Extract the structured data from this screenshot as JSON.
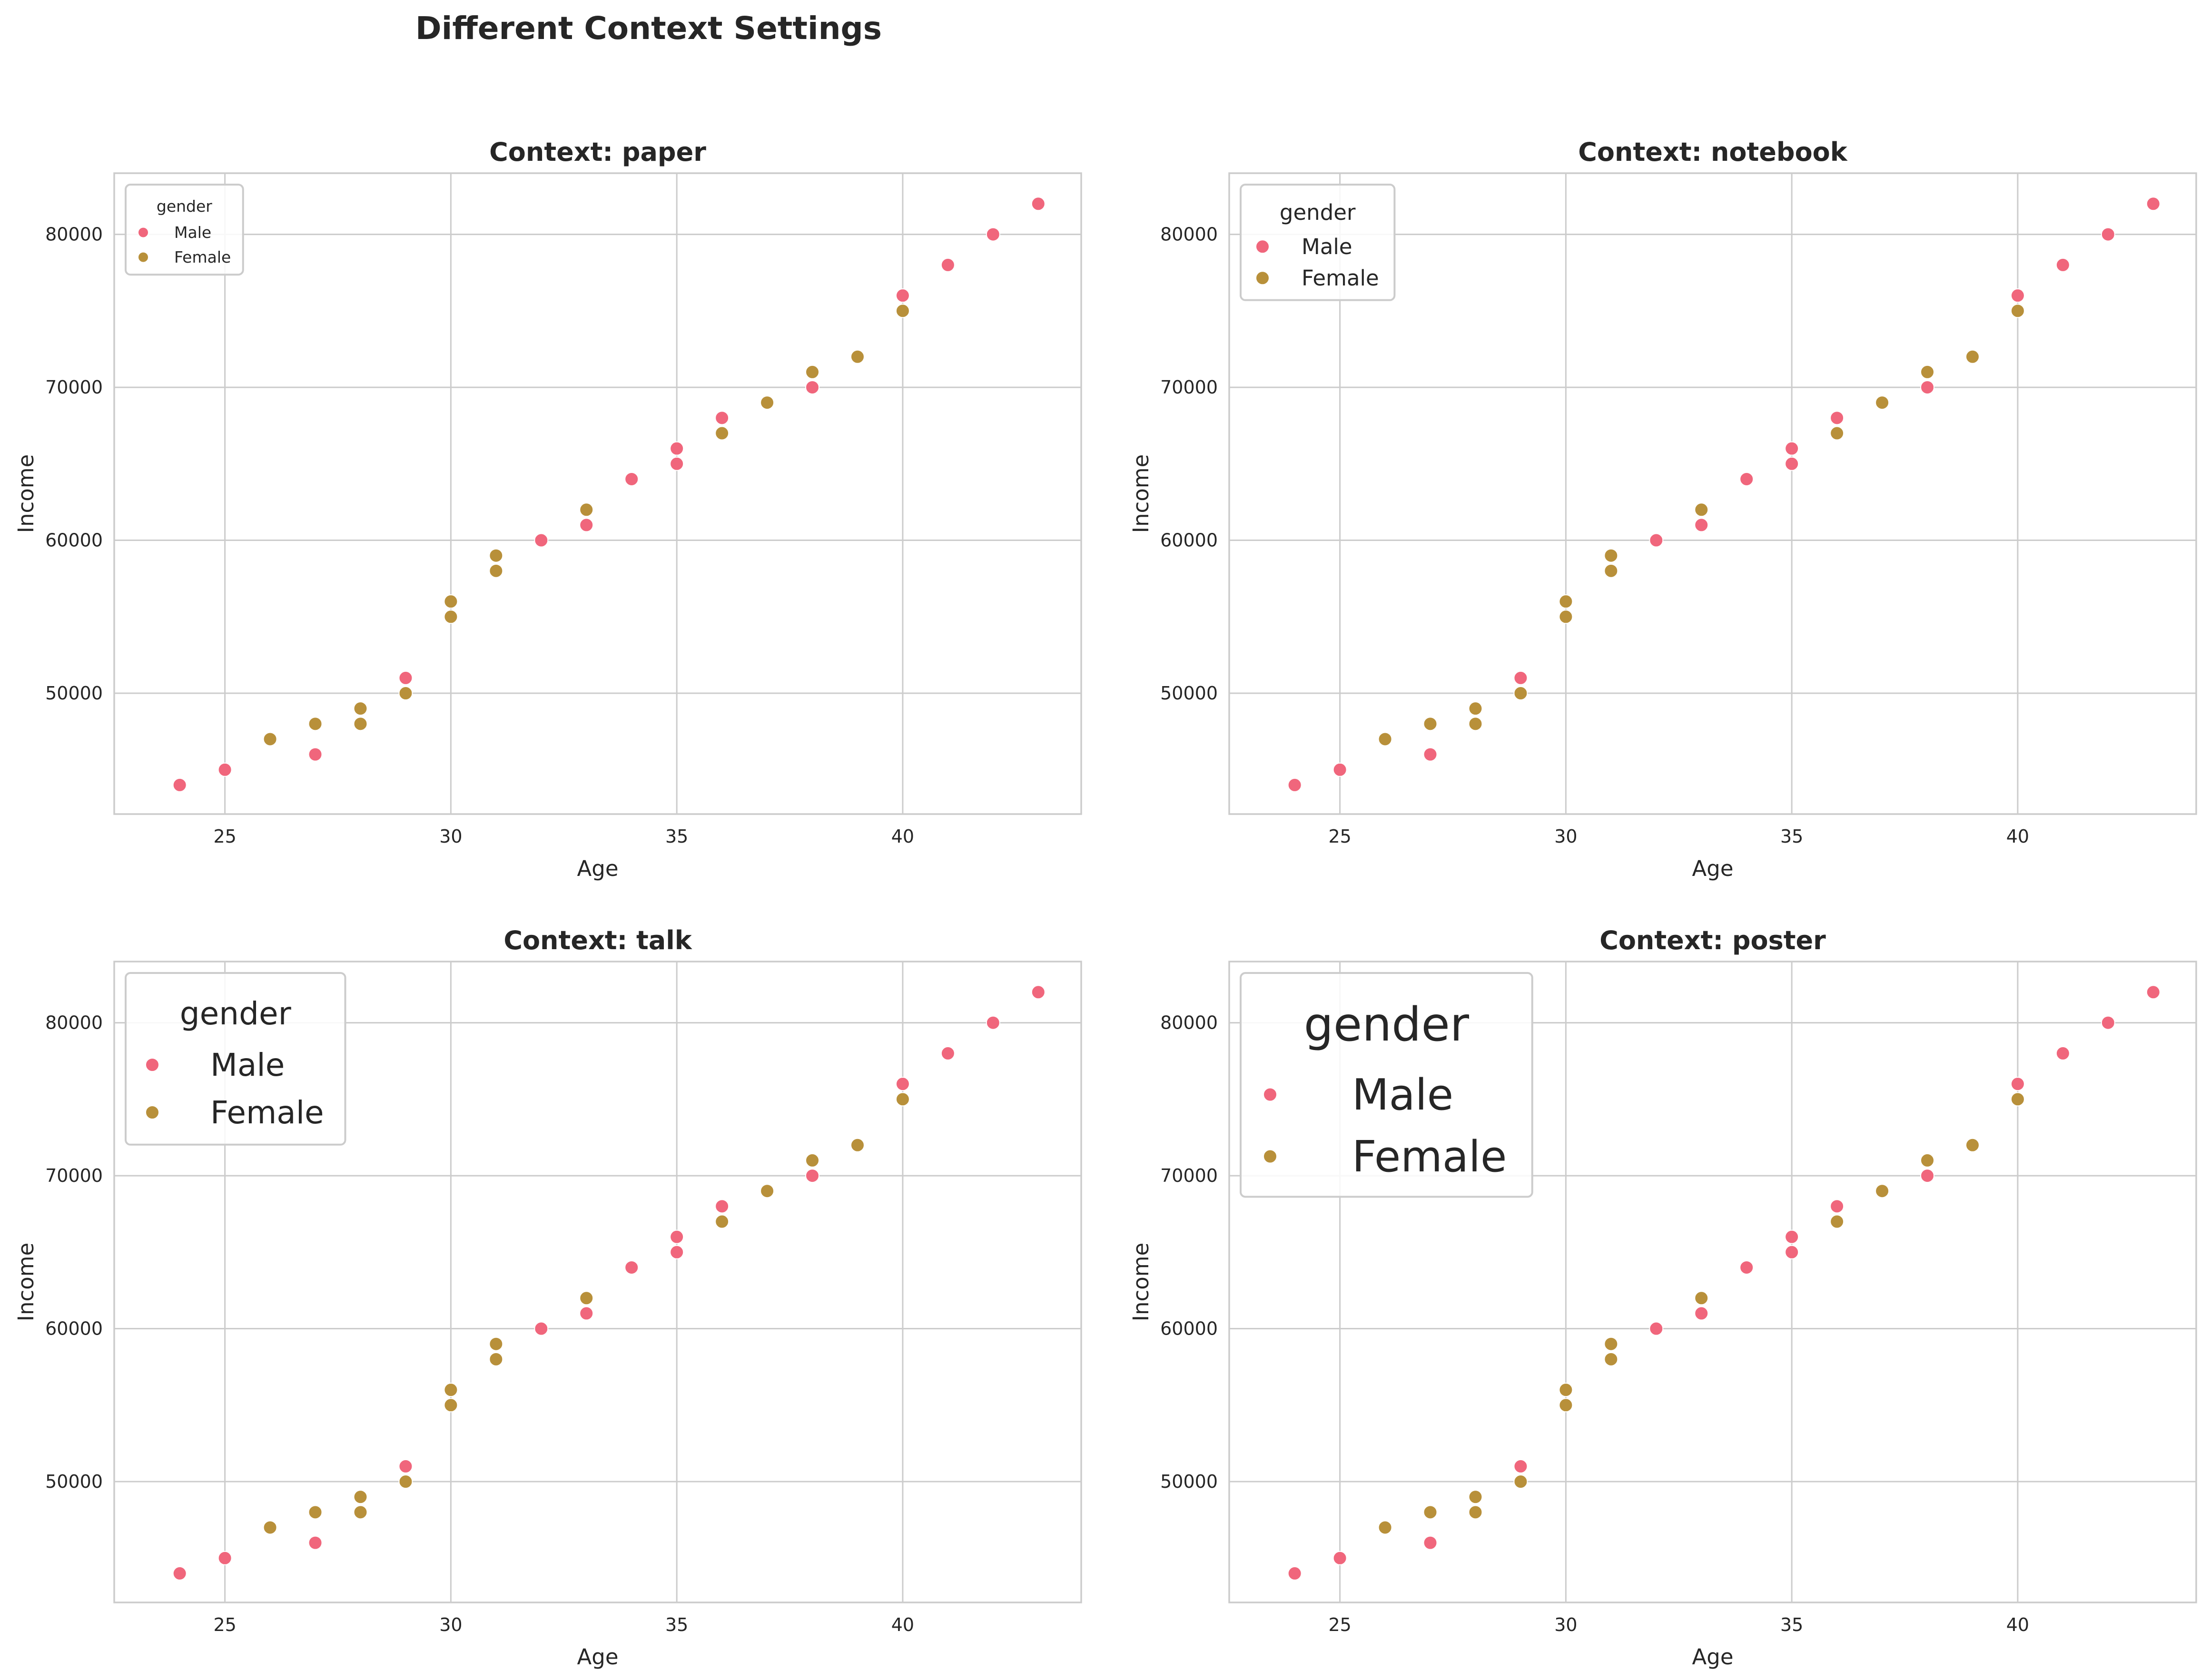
{
  "figure": {
    "suptitle": "Different Context Settings"
  },
  "colors": {
    "male": "#f0667c",
    "female": "#b8903a",
    "grid": "#cccccc",
    "spine": "#cccccc",
    "legend_border": "#cccccc",
    "background": "#ffffff"
  },
  "chart_data": [
    {
      "type": "scatter",
      "context": "paper",
      "title": "Context: paper",
      "xlabel": "Age",
      "ylabel": "Income",
      "xticks": [
        25,
        30,
        35,
        40
      ],
      "yticks": [
        50000,
        60000,
        70000,
        80000
      ],
      "xlim": [
        22.55,
        43.95
      ],
      "ylim": [
        42100,
        84000
      ],
      "grid": true,
      "legend": {
        "title": "gender",
        "entries": [
          "Male",
          "Female"
        ],
        "placement": "upper-left"
      },
      "series": [
        {
          "name": "Male",
          "points": [
            [
              24,
              44000
            ],
            [
              25,
              45000
            ],
            [
              27,
              46000
            ],
            [
              29,
              51000
            ],
            [
              32,
              60000
            ],
            [
              33,
              61000
            ],
            [
              34,
              64000
            ],
            [
              35,
              65000
            ],
            [
              35,
              66000
            ],
            [
              36,
              68000
            ],
            [
              38,
              70000
            ],
            [
              40,
              76000
            ],
            [
              41,
              78000
            ],
            [
              42,
              80000
            ],
            [
              43,
              82000
            ]
          ]
        },
        {
          "name": "Female",
          "points": [
            [
              26,
              47000
            ],
            [
              27,
              48000
            ],
            [
              28,
              48000
            ],
            [
              28,
              49000
            ],
            [
              29,
              50000
            ],
            [
              30,
              55000
            ],
            [
              30,
              56000
            ],
            [
              31,
              58000
            ],
            [
              31,
              59000
            ],
            [
              33,
              62000
            ],
            [
              36,
              67000
            ],
            [
              37,
              69000
            ],
            [
              38,
              71000
            ],
            [
              39,
              72000
            ],
            [
              40,
              75000
            ]
          ]
        }
      ]
    },
    {
      "type": "scatter",
      "context": "notebook",
      "title": "Context: notebook",
      "xlabel": "Age",
      "ylabel": "Income",
      "xticks": [
        25,
        30,
        35,
        40
      ],
      "yticks": [
        50000,
        60000,
        70000,
        80000
      ],
      "xlim": [
        22.55,
        43.95
      ],
      "ylim": [
        42100,
        84000
      ],
      "grid": true,
      "legend": {
        "title": "gender",
        "entries": [
          "Male",
          "Female"
        ],
        "placement": "upper-left"
      },
      "series": [
        {
          "name": "Male",
          "points": [
            [
              24,
              44000
            ],
            [
              25,
              45000
            ],
            [
              27,
              46000
            ],
            [
              29,
              51000
            ],
            [
              32,
              60000
            ],
            [
              33,
              61000
            ],
            [
              34,
              64000
            ],
            [
              35,
              65000
            ],
            [
              35,
              66000
            ],
            [
              36,
              68000
            ],
            [
              38,
              70000
            ],
            [
              40,
              76000
            ],
            [
              41,
              78000
            ],
            [
              42,
              80000
            ],
            [
              43,
              82000
            ]
          ]
        },
        {
          "name": "Female",
          "points": [
            [
              26,
              47000
            ],
            [
              27,
              48000
            ],
            [
              28,
              48000
            ],
            [
              28,
              49000
            ],
            [
              29,
              50000
            ],
            [
              30,
              55000
            ],
            [
              30,
              56000
            ],
            [
              31,
              58000
            ],
            [
              31,
              59000
            ],
            [
              33,
              62000
            ],
            [
              36,
              67000
            ],
            [
              37,
              69000
            ],
            [
              38,
              71000
            ],
            [
              39,
              72000
            ],
            [
              40,
              75000
            ]
          ]
        }
      ]
    },
    {
      "type": "scatter",
      "context": "talk",
      "title": "Context: talk",
      "xlabel": "Age",
      "ylabel": "Income",
      "xticks": [
        25,
        30,
        35,
        40
      ],
      "yticks": [
        50000,
        60000,
        70000,
        80000
      ],
      "xlim": [
        22.55,
        43.95
      ],
      "ylim": [
        42100,
        84000
      ],
      "grid": true,
      "legend": {
        "title": "gender",
        "entries": [
          "Male",
          "Female"
        ],
        "placement": "upper-left"
      },
      "series": [
        {
          "name": "Male",
          "points": [
            [
              24,
              44000
            ],
            [
              25,
              45000
            ],
            [
              27,
              46000
            ],
            [
              29,
              51000
            ],
            [
              32,
              60000
            ],
            [
              33,
              61000
            ],
            [
              34,
              64000
            ],
            [
              35,
              65000
            ],
            [
              35,
              66000
            ],
            [
              36,
              68000
            ],
            [
              38,
              70000
            ],
            [
              40,
              76000
            ],
            [
              41,
              78000
            ],
            [
              42,
              80000
            ],
            [
              43,
              82000
            ]
          ]
        },
        {
          "name": "Female",
          "points": [
            [
              26,
              47000
            ],
            [
              27,
              48000
            ],
            [
              28,
              48000
            ],
            [
              28,
              49000
            ],
            [
              29,
              50000
            ],
            [
              30,
              55000
            ],
            [
              30,
              56000
            ],
            [
              31,
              58000
            ],
            [
              31,
              59000
            ],
            [
              33,
              62000
            ],
            [
              36,
              67000
            ],
            [
              37,
              69000
            ],
            [
              38,
              71000
            ],
            [
              39,
              72000
            ],
            [
              40,
              75000
            ]
          ]
        }
      ]
    },
    {
      "type": "scatter",
      "context": "poster",
      "title": "Context: poster",
      "xlabel": "Age",
      "ylabel": "Income",
      "xticks": [
        25,
        30,
        35,
        40
      ],
      "yticks": [
        50000,
        60000,
        70000,
        80000
      ],
      "xlim": [
        22.55,
        43.95
      ],
      "ylim": [
        42100,
        84000
      ],
      "grid": true,
      "legend": {
        "title": "gender",
        "entries": [
          "Male",
          "Female"
        ],
        "placement": "upper-left"
      },
      "series": [
        {
          "name": "Male",
          "points": [
            [
              24,
              44000
            ],
            [
              25,
              45000
            ],
            [
              27,
              46000
            ],
            [
              29,
              51000
            ],
            [
              32,
              60000
            ],
            [
              33,
              61000
            ],
            [
              34,
              64000
            ],
            [
              35,
              65000
            ],
            [
              35,
              66000
            ],
            [
              36,
              68000
            ],
            [
              38,
              70000
            ],
            [
              40,
              76000
            ],
            [
              41,
              78000
            ],
            [
              42,
              80000
            ],
            [
              43,
              82000
            ]
          ]
        },
        {
          "name": "Female",
          "points": [
            [
              26,
              47000
            ],
            [
              27,
              48000
            ],
            [
              28,
              48000
            ],
            [
              28,
              49000
            ],
            [
              29,
              50000
            ],
            [
              30,
              55000
            ],
            [
              30,
              56000
            ],
            [
              31,
              58000
            ],
            [
              31,
              59000
            ],
            [
              33,
              62000
            ],
            [
              36,
              67000
            ],
            [
              37,
              69000
            ],
            [
              38,
              71000
            ],
            [
              39,
              72000
            ],
            [
              40,
              75000
            ]
          ]
        }
      ]
    }
  ]
}
